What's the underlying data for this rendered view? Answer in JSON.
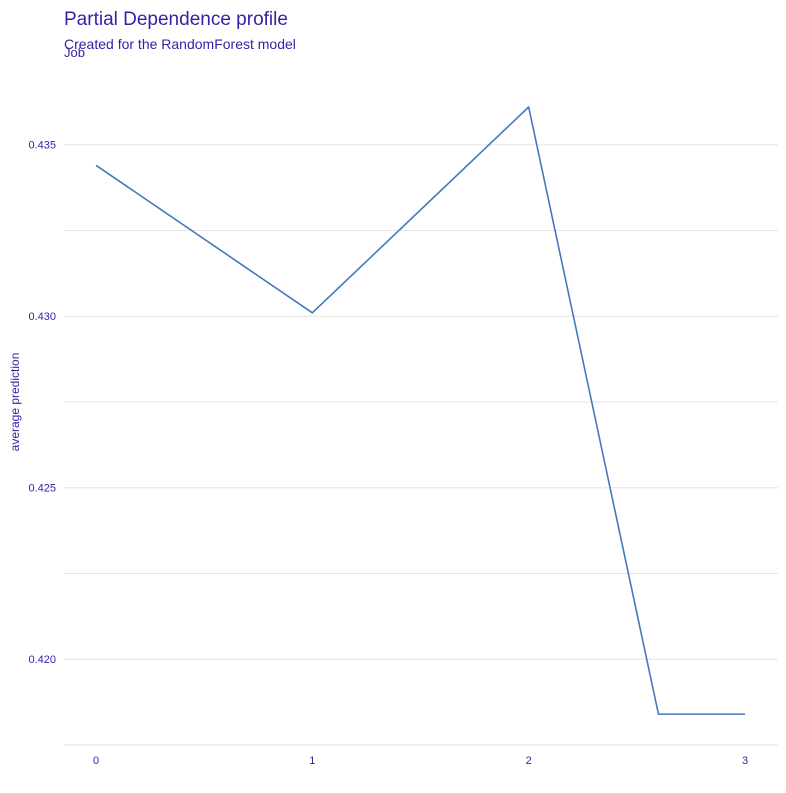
{
  "chart_data": {
    "type": "line",
    "title": "Partial Dependence profile",
    "subtitle": "Created for the RandomForest model",
    "facet_label": "Job",
    "xlabel": "",
    "ylabel": "average prediction",
    "x": [
      0,
      1,
      2,
      2.6,
      3
    ],
    "series": [
      {
        "values": [
          0.4344,
          0.4301,
          0.4361,
          0.4184,
          0.4184
        ],
        "color": "#4378bf"
      }
    ],
    "xlim": [
      0,
      3
    ],
    "ylim": [
      0.4175,
      0.4368
    ],
    "xticks": [
      {
        "value": 0,
        "label": "0"
      },
      {
        "value": 1,
        "label": "1"
      },
      {
        "value": 2,
        "label": "2"
      },
      {
        "value": 3,
        "label": "3"
      }
    ],
    "yticks": [
      {
        "value": 0.42,
        "label": "0.420"
      },
      {
        "value": 0.425,
        "label": "0.425"
      },
      {
        "value": 0.43,
        "label": "0.430"
      },
      {
        "value": 0.435,
        "label": "0.435"
      }
    ],
    "ygrid_minor": [
      0.4225,
      0.4275,
      0.4325
    ],
    "grid": true,
    "legend": "none",
    "colors": {
      "text": "#371ea3",
      "grid": "#e6e6e6",
      "line": "#4378bf"
    }
  }
}
